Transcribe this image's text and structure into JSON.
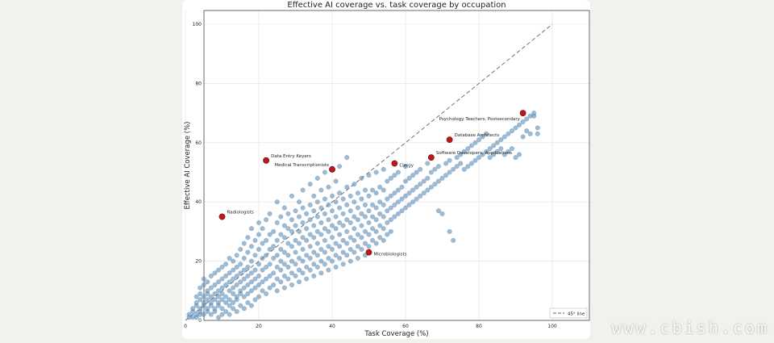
{
  "chart_data": {
    "type": "scatter",
    "title": "Effective AI coverage vs. task coverage by occupation",
    "xlabel": "Task Coverage (%)",
    "ylabel": "Effective AI Coverage (%)",
    "xlim": [
      0,
      100
    ],
    "ylim": [
      0,
      100
    ],
    "xticks": [
      0,
      20,
      40,
      60,
      80,
      100
    ],
    "yticks": [
      0,
      20,
      40,
      60,
      80,
      100
    ],
    "grid": true,
    "legend": {
      "placement": "bottom-right",
      "entries": [
        "45° line"
      ]
    },
    "reference_line": {
      "label": "45° line",
      "from": [
        0,
        0
      ],
      "to": [
        100,
        100
      ]
    },
    "colors": {
      "points": "#5b8db8",
      "highlight": "#c0161c",
      "reference": "#666666"
    },
    "highlighted": [
      {
        "label": "Radiologists",
        "x": 10,
        "y": 35
      },
      {
        "label": "Data Entry Keyers",
        "x": 22,
        "y": 54
      },
      {
        "label": "Medical Transcriptionists",
        "x": 40,
        "y": 51
      },
      {
        "label": "Clergy",
        "x": 57,
        "y": 53
      },
      {
        "label": "Software Developers, Applications",
        "x": 67,
        "y": 55
      },
      {
        "label": "Database Architects",
        "x": 72,
        "y": 61
      },
      {
        "label": "Psychology Teachers, Postsecondary",
        "x": 92,
        "y": 70
      },
      {
        "label": "Microbiologists",
        "x": 50,
        "y": 23
      }
    ],
    "points": [
      [
        1,
        1
      ],
      [
        1,
        2
      ],
      [
        2,
        1
      ],
      [
        2,
        3
      ],
      [
        2,
        4
      ],
      [
        3,
        1
      ],
      [
        3,
        2
      ],
      [
        3,
        5
      ],
      [
        3,
        6
      ],
      [
        3,
        8
      ],
      [
        4,
        2
      ],
      [
        4,
        3
      ],
      [
        4,
        4
      ],
      [
        4,
        7
      ],
      [
        4,
        9
      ],
      [
        4,
        11
      ],
      [
        5,
        2
      ],
      [
        5,
        5
      ],
      [
        5,
        6
      ],
      [
        5,
        8
      ],
      [
        5,
        12
      ],
      [
        5,
        14
      ],
      [
        6,
        3
      ],
      [
        6,
        4
      ],
      [
        6,
        7
      ],
      [
        6,
        9
      ],
      [
        6,
        10
      ],
      [
        6,
        13
      ],
      [
        7,
        2
      ],
      [
        7,
        5
      ],
      [
        7,
        6
      ],
      [
        7,
        8
      ],
      [
        7,
        11
      ],
      [
        7,
        15
      ],
      [
        8,
        3
      ],
      [
        8,
        4
      ],
      [
        8,
        7
      ],
      [
        8,
        9
      ],
      [
        8,
        12
      ],
      [
        8,
        16
      ],
      [
        9,
        1
      ],
      [
        9,
        5
      ],
      [
        9,
        6
      ],
      [
        9,
        8
      ],
      [
        9,
        10
      ],
      [
        9,
        13
      ],
      [
        9,
        17
      ],
      [
        10,
        2
      ],
      [
        10,
        4
      ],
      [
        10,
        7
      ],
      [
        10,
        9
      ],
      [
        10,
        11
      ],
      [
        10,
        14
      ],
      [
        10,
        18
      ],
      [
        11,
        3
      ],
      [
        11,
        6
      ],
      [
        11,
        8
      ],
      [
        11,
        12
      ],
      [
        11,
        15
      ],
      [
        11,
        19
      ],
      [
        12,
        2
      ],
      [
        12,
        5
      ],
      [
        12,
        7
      ],
      [
        12,
        10
      ],
      [
        12,
        13
      ],
      [
        12,
        16
      ],
      [
        12,
        21
      ],
      [
        13,
        4
      ],
      [
        13,
        6
      ],
      [
        13,
        9
      ],
      [
        13,
        11
      ],
      [
        13,
        14
      ],
      [
        13,
        17
      ],
      [
        13,
        20
      ],
      [
        14,
        3
      ],
      [
        14,
        7
      ],
      [
        14,
        8
      ],
      [
        14,
        12
      ],
      [
        14,
        15
      ],
      [
        14,
        18
      ],
      [
        14,
        22
      ],
      [
        15,
        5
      ],
      [
        15,
        9
      ],
      [
        15,
        10
      ],
      [
        15,
        13
      ],
      [
        15,
        16
      ],
      [
        15,
        19
      ],
      [
        15,
        24
      ],
      [
        16,
        4
      ],
      [
        16,
        8
      ],
      [
        16,
        11
      ],
      [
        16,
        14
      ],
      [
        16,
        17
      ],
      [
        16,
        21
      ],
      [
        16,
        26
      ],
      [
        17,
        6
      ],
      [
        17,
        9
      ],
      [
        17,
        12
      ],
      [
        17,
        15
      ],
      [
        17,
        18
      ],
      [
        17,
        23
      ],
      [
        17,
        28
      ],
      [
        18,
        5
      ],
      [
        18,
        10
      ],
      [
        18,
        13
      ],
      [
        18,
        16
      ],
      [
        18,
        20
      ],
      [
        18,
        25
      ],
      [
        18,
        31
      ],
      [
        19,
        7
      ],
      [
        19,
        11
      ],
      [
        19,
        14
      ],
      [
        19,
        17
      ],
      [
        19,
        22
      ],
      [
        19,
        27
      ],
      [
        20,
        8
      ],
      [
        20,
        12
      ],
      [
        20,
        15
      ],
      [
        20,
        19
      ],
      [
        20,
        24
      ],
      [
        20,
        29
      ],
      [
        20,
        33
      ],
      [
        21,
        10
      ],
      [
        21,
        13
      ],
      [
        21,
        17
      ],
      [
        21,
        21
      ],
      [
        21,
        26
      ],
      [
        21,
        31
      ],
      [
        22,
        9
      ],
      [
        22,
        14
      ],
      [
        22,
        18
      ],
      [
        22,
        22
      ],
      [
        22,
        27
      ],
      [
        22,
        34
      ],
      [
        23,
        11
      ],
      [
        23,
        15
      ],
      [
        23,
        19
      ],
      [
        23,
        24
      ],
      [
        23,
        29
      ],
      [
        23,
        36
      ],
      [
        24,
        12
      ],
      [
        24,
        16
      ],
      [
        24,
        21
      ],
      [
        24,
        25
      ],
      [
        24,
        30
      ],
      [
        25,
        10
      ],
      [
        25,
        14
      ],
      [
        25,
        18
      ],
      [
        25,
        22
      ],
      [
        25,
        27
      ],
      [
        25,
        33
      ],
      [
        25,
        40
      ],
      [
        26,
        13
      ],
      [
        26,
        17
      ],
      [
        26,
        20
      ],
      [
        26,
        24
      ],
      [
        26,
        29
      ],
      [
        26,
        35
      ],
      [
        27,
        11
      ],
      [
        27,
        15
      ],
      [
        27,
        19
      ],
      [
        27,
        23
      ],
      [
        27,
        28
      ],
      [
        27,
        32
      ],
      [
        27,
        38
      ],
      [
        28,
        14
      ],
      [
        28,
        18
      ],
      [
        28,
        22
      ],
      [
        28,
        26
      ],
      [
        28,
        31
      ],
      [
        28,
        36
      ],
      [
        29,
        12
      ],
      [
        29,
        16
      ],
      [
        29,
        20
      ],
      [
        29,
        25
      ],
      [
        29,
        30
      ],
      [
        29,
        34
      ],
      [
        29,
        42
      ],
      [
        30,
        15
      ],
      [
        30,
        19
      ],
      [
        30,
        23
      ],
      [
        30,
        27
      ],
      [
        30,
        32
      ],
      [
        30,
        37
      ],
      [
        31,
        13
      ],
      [
        31,
        17
      ],
      [
        31,
        21
      ],
      [
        31,
        26
      ],
      [
        31,
        30
      ],
      [
        31,
        35
      ],
      [
        31,
        40
      ],
      [
        32,
        16
      ],
      [
        32,
        20
      ],
      [
        32,
        24
      ],
      [
        32,
        28
      ],
      [
        32,
        33
      ],
      [
        32,
        38
      ],
      [
        32,
        44
      ],
      [
        33,
        14
      ],
      [
        33,
        18
      ],
      [
        33,
        22
      ],
      [
        33,
        27
      ],
      [
        33,
        31
      ],
      [
        33,
        36
      ],
      [
        34,
        17
      ],
      [
        34,
        21
      ],
      [
        34,
        25
      ],
      [
        34,
        29
      ],
      [
        34,
        34
      ],
      [
        34,
        39
      ],
      [
        34,
        46
      ],
      [
        35,
        15
      ],
      [
        35,
        19
      ],
      [
        35,
        23
      ],
      [
        35,
        28
      ],
      [
        35,
        32
      ],
      [
        35,
        37
      ],
      [
        35,
        42
      ],
      [
        36,
        18
      ],
      [
        36,
        22
      ],
      [
        36,
        26
      ],
      [
        36,
        30
      ],
      [
        36,
        35
      ],
      [
        36,
        40
      ],
      [
        36,
        48
      ],
      [
        37,
        16
      ],
      [
        37,
        20
      ],
      [
        37,
        24
      ],
      [
        37,
        29
      ],
      [
        37,
        33
      ],
      [
        37,
        38
      ],
      [
        37,
        44
      ],
      [
        38,
        19
      ],
      [
        38,
        23
      ],
      [
        38,
        27
      ],
      [
        38,
        31
      ],
      [
        38,
        36
      ],
      [
        38,
        41
      ],
      [
        38,
        50
      ],
      [
        39,
        17
      ],
      [
        39,
        21
      ],
      [
        39,
        25
      ],
      [
        39,
        30
      ],
      [
        39,
        34
      ],
      [
        39,
        39
      ],
      [
        39,
        45
      ],
      [
        40,
        20
      ],
      [
        40,
        24
      ],
      [
        40,
        28
      ],
      [
        40,
        32
      ],
      [
        40,
        37
      ],
      [
        40,
        42
      ],
      [
        41,
        18
      ],
      [
        41,
        22
      ],
      [
        41,
        26
      ],
      [
        41,
        31
      ],
      [
        41,
        35
      ],
      [
        41,
        40
      ],
      [
        41,
        47
      ],
      [
        42,
        21
      ],
      [
        42,
        25
      ],
      [
        42,
        29
      ],
      [
        42,
        33
      ],
      [
        42,
        38
      ],
      [
        42,
        43
      ],
      [
        42,
        52
      ],
      [
        43,
        19
      ],
      [
        43,
        23
      ],
      [
        43,
        27
      ],
      [
        43,
        32
      ],
      [
        43,
        36
      ],
      [
        43,
        41
      ],
      [
        44,
        22
      ],
      [
        44,
        26
      ],
      [
        44,
        30
      ],
      [
        44,
        34
      ],
      [
        44,
        39
      ],
      [
        44,
        45
      ],
      [
        44,
        55
      ],
      [
        45,
        20
      ],
      [
        45,
        24
      ],
      [
        45,
        28
      ],
      [
        45,
        33
      ],
      [
        45,
        37
      ],
      [
        45,
        42
      ],
      [
        46,
        23
      ],
      [
        46,
        27
      ],
      [
        46,
        31
      ],
      [
        46,
        35
      ],
      [
        46,
        40
      ],
      [
        46,
        46
      ],
      [
        47,
        21
      ],
      [
        47,
        25
      ],
      [
        47,
        29
      ],
      [
        47,
        34
      ],
      [
        47,
        38
      ],
      [
        47,
        43
      ],
      [
        48,
        24
      ],
      [
        48,
        28
      ],
      [
        48,
        32
      ],
      [
        48,
        36
      ],
      [
        48,
        41
      ],
      [
        48,
        48
      ],
      [
        49,
        22
      ],
      [
        49,
        26
      ],
      [
        49,
        30
      ],
      [
        49,
        35
      ],
      [
        49,
        39
      ],
      [
        49,
        44
      ],
      [
        50,
        25
      ],
      [
        50,
        29
      ],
      [
        50,
        33
      ],
      [
        50,
        37
      ],
      [
        50,
        42
      ],
      [
        50,
        49
      ],
      [
        51,
        27
      ],
      [
        51,
        31
      ],
      [
        51,
        35
      ],
      [
        51,
        39
      ],
      [
        51,
        44
      ],
      [
        52,
        26
      ],
      [
        52,
        30
      ],
      [
        52,
        34
      ],
      [
        52,
        38
      ],
      [
        52,
        43
      ],
      [
        52,
        50
      ],
      [
        53,
        28
      ],
      [
        53,
        32
      ],
      [
        53,
        36
      ],
      [
        53,
        40
      ],
      [
        53,
        45
      ],
      [
        54,
        27
      ],
      [
        54,
        31
      ],
      [
        54,
        35
      ],
      [
        54,
        39
      ],
      [
        54,
        44
      ],
      [
        54,
        51
      ],
      [
        55,
        29
      ],
      [
        55,
        33
      ],
      [
        55,
        37
      ],
      [
        55,
        41
      ],
      [
        55,
        47
      ],
      [
        56,
        30
      ],
      [
        56,
        34
      ],
      [
        56,
        38
      ],
      [
        56,
        42
      ],
      [
        56,
        48
      ],
      [
        57,
        35
      ],
      [
        57,
        39
      ],
      [
        57,
        43
      ],
      [
        57,
        49
      ],
      [
        58,
        36
      ],
      [
        58,
        40
      ],
      [
        58,
        44
      ],
      [
        58,
        50
      ],
      [
        59,
        37
      ],
      [
        59,
        41
      ],
      [
        59,
        45
      ],
      [
        60,
        38
      ],
      [
        60,
        42
      ],
      [
        60,
        47
      ],
      [
        60,
        52
      ],
      [
        61,
        39
      ],
      [
        61,
        43
      ],
      [
        61,
        48
      ],
      [
        62,
        40
      ],
      [
        62,
        44
      ],
      [
        62,
        49
      ],
      [
        63,
        41
      ],
      [
        63,
        45
      ],
      [
        63,
        50
      ],
      [
        64,
        42
      ],
      [
        64,
        46
      ],
      [
        64,
        51
      ],
      [
        65,
        43
      ],
      [
        65,
        47
      ],
      [
        66,
        44
      ],
      [
        66,
        48
      ],
      [
        66,
        53
      ],
      [
        67,
        45
      ],
      [
        67,
        50
      ],
      [
        68,
        46
      ],
      [
        68,
        51
      ],
      [
        69,
        37
      ],
      [
        69,
        47
      ],
      [
        69,
        52
      ],
      [
        70,
        36
      ],
      [
        70,
        48
      ],
      [
        71,
        49
      ],
      [
        71,
        53
      ],
      [
        72,
        30
      ],
      [
        72,
        50
      ],
      [
        72,
        54
      ],
      [
        73,
        27
      ],
      [
        73,
        51
      ],
      [
        74,
        52
      ],
      [
        74,
        55
      ],
      [
        75,
        53
      ],
      [
        75,
        56
      ],
      [
        76,
        51
      ],
      [
        76,
        57
      ],
      [
        77,
        52
      ],
      [
        77,
        58
      ],
      [
        78,
        53
      ],
      [
        78,
        59
      ],
      [
        79,
        54
      ],
      [
        79,
        60
      ],
      [
        80,
        55
      ],
      [
        80,
        61
      ],
      [
        81,
        56
      ],
      [
        81,
        62
      ],
      [
        82,
        57
      ],
      [
        82,
        63
      ],
      [
        83,
        55
      ],
      [
        83,
        58
      ],
      [
        84,
        56
      ],
      [
        84,
        59
      ],
      [
        85,
        57
      ],
      [
        85,
        60
      ],
      [
        86,
        58
      ],
      [
        86,
        61
      ],
      [
        87,
        56
      ],
      [
        87,
        62
      ],
      [
        88,
        57
      ],
      [
        88,
        63
      ],
      [
        89,
        58
      ],
      [
        89,
        64
      ],
      [
        90,
        55
      ],
      [
        90,
        65
      ],
      [
        91,
        56
      ],
      [
        91,
        66
      ],
      [
        92,
        62
      ],
      [
        92,
        67
      ],
      [
        93,
        64
      ],
      [
        93,
        68
      ],
      [
        94,
        63
      ],
      [
        94,
        69
      ],
      [
        95,
        69
      ],
      [
        95,
        70
      ],
      [
        96,
        63
      ],
      [
        96,
        65
      ]
    ]
  }
}
